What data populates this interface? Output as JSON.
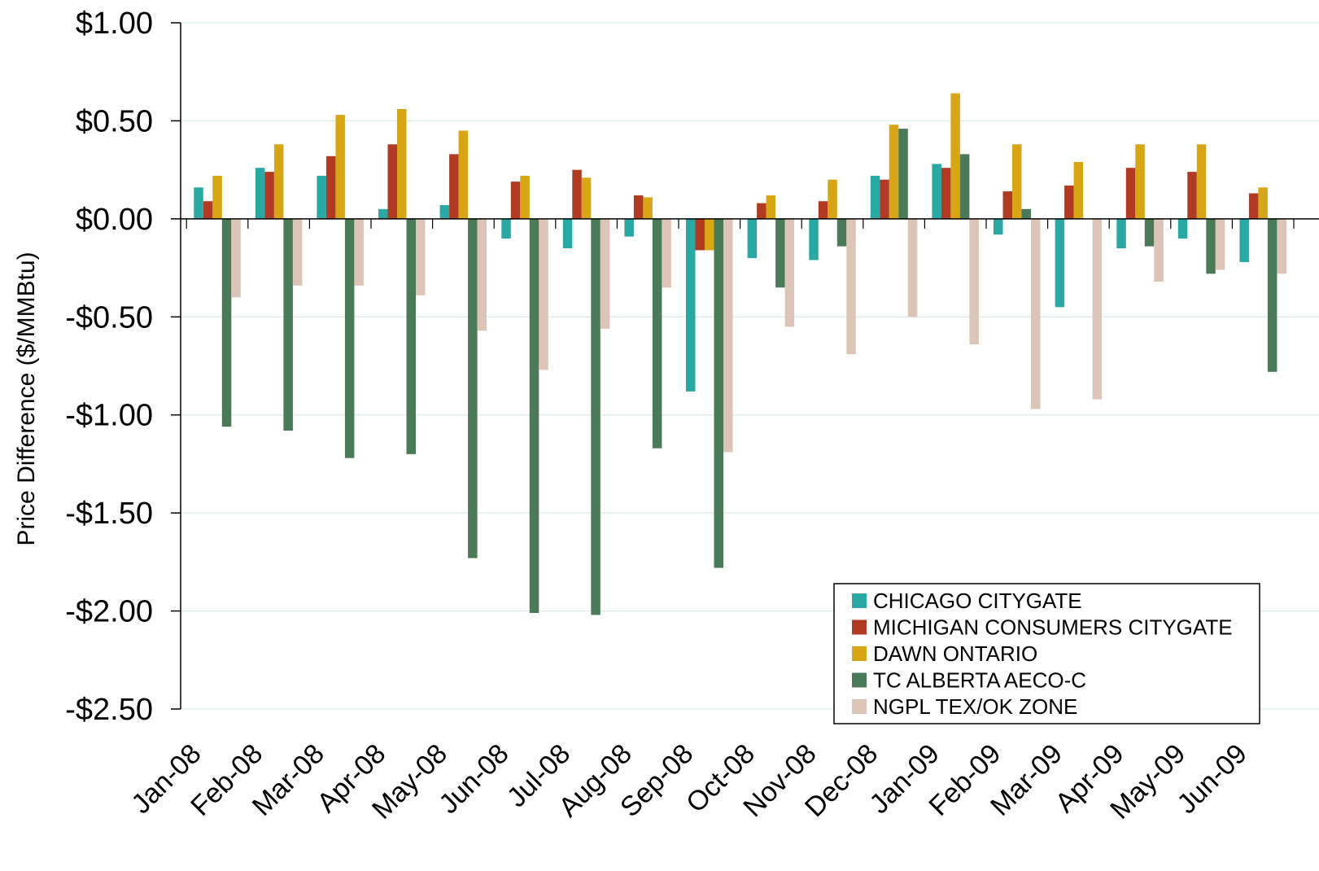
{
  "chart_data": {
    "type": "bar",
    "title": "",
    "xlabel": "",
    "ylabel": "Price Difference  ($/MMBtu)",
    "ylim": [
      -2.5,
      1.0
    ],
    "y_tick_values": [
      1.0,
      0.5,
      0.0,
      -0.5,
      -1.0,
      -1.5,
      -2.0,
      -2.5
    ],
    "y_tick_labels": [
      "$1.00",
      "$0.50",
      "$0.00",
      "-$0.50",
      "-$1.00",
      "-$1.50",
      "-$2.00",
      "-$2.50"
    ],
    "grid": true,
    "legend_position": "bottom-right",
    "categories": [
      "Jan-08",
      "Feb-08",
      "Mar-08",
      "Apr-08",
      "May-08",
      "Jun-08",
      "Jul-08",
      "Aug-08",
      "Sep-08",
      "Oct-08",
      "Nov-08",
      "Dec-08",
      "Jan-09",
      "Feb-09",
      "Mar-09",
      "Apr-09",
      "May-09",
      "Jun-09"
    ],
    "series": [
      {
        "name": "CHICAGO CITYGATE",
        "color": "#2aa8a4",
        "values": [
          0.16,
          0.26,
          0.22,
          0.05,
          0.07,
          -0.1,
          -0.15,
          -0.09,
          -0.88,
          -0.2,
          -0.21,
          0.22,
          0.28,
          -0.08,
          -0.45,
          -0.15,
          -0.1,
          -0.22
        ]
      },
      {
        "name": "MICHIGAN CONSUMERS CITYGATE",
        "color": "#b03a22",
        "values": [
          0.09,
          0.24,
          0.32,
          0.38,
          0.33,
          0.19,
          0.25,
          0.12,
          -0.16,
          0.08,
          0.09,
          0.2,
          0.26,
          0.14,
          0.17,
          0.26,
          0.24,
          0.13
        ]
      },
      {
        "name": "DAWN ONTARIO",
        "color": "#d8a515",
        "values": [
          0.22,
          0.38,
          0.53,
          0.56,
          0.45,
          0.22,
          0.21,
          0.11,
          -0.16,
          0.12,
          0.2,
          0.48,
          0.64,
          0.38,
          0.29,
          0.38,
          0.38,
          0.16
        ]
      },
      {
        "name": "TC ALBERTA AECO-C",
        "color": "#4a7a57",
        "values": [
          -1.06,
          -1.08,
          -1.22,
          -1.2,
          -1.73,
          -2.01,
          -2.02,
          -1.17,
          -1.78,
          -0.35,
          -0.14,
          0.46,
          0.33,
          0.05,
          0.0,
          -0.14,
          -0.28,
          -0.78
        ]
      },
      {
        "name": "NGPL TEX/OK ZONE",
        "color": "#dcc5b6",
        "values": [
          -0.4,
          -0.34,
          -0.34,
          -0.39,
          -0.57,
          -0.77,
          -0.56,
          -0.35,
          -1.19,
          -0.55,
          -0.69,
          -0.5,
          -0.64,
          -0.97,
          -0.92,
          -0.32,
          -0.26,
          -0.28
        ]
      }
    ]
  }
}
